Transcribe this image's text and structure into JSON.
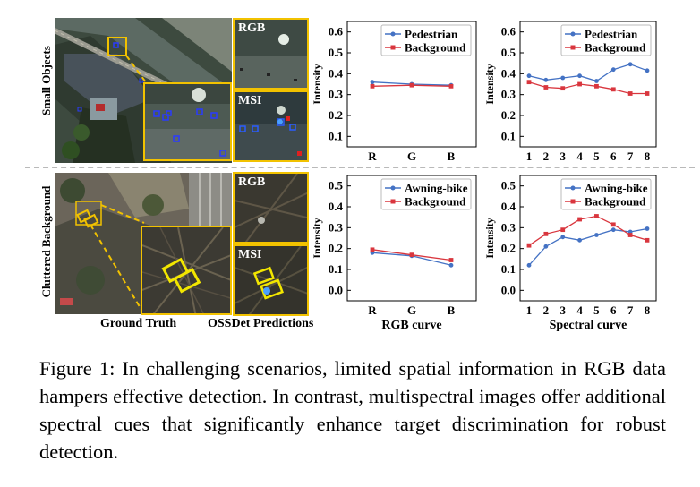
{
  "figure": {
    "row_labels": [
      "Small Objects",
      "Cluttered Background"
    ],
    "column_captions": {
      "ground_truth": "Ground Truth",
      "predictions": "OSSDet Predictions",
      "rgb_curve": "RGB curve",
      "spectral_curve": "Spectral curve"
    },
    "inset_labels": {
      "rgb": "RGB",
      "msi": "MSI"
    }
  },
  "colors": {
    "series_a": "#4472c4",
    "series_b": "#d9363e",
    "highlight": "#f2c200"
  },
  "chart_data": [
    {
      "type": "line",
      "title": "",
      "xlabel": "",
      "ylabel": "Intensity",
      "categories": [
        "R",
        "G",
        "B"
      ],
      "ylim": [
        0.05,
        0.65
      ],
      "yticks": [
        "0.1",
        "0.2",
        "0.3",
        "0.4",
        "0.5",
        "0.6"
      ],
      "legend": "top-right",
      "series": [
        {
          "name": "Pedestrian",
          "values": [
            0.36,
            0.35,
            0.345
          ]
        },
        {
          "name": "Background",
          "values": [
            0.34,
            0.345,
            0.34
          ]
        }
      ]
    },
    {
      "type": "line",
      "title": "",
      "xlabel": "",
      "ylabel": "Intensity",
      "categories": [
        "1",
        "2",
        "3",
        "4",
        "5",
        "6",
        "7",
        "8"
      ],
      "ylim": [
        0.05,
        0.65
      ],
      "yticks": [
        "0.1",
        "0.2",
        "0.3",
        "0.4",
        "0.5",
        "0.6"
      ],
      "legend": "top-right",
      "series": [
        {
          "name": "Pedestrian",
          "values": [
            0.39,
            0.37,
            0.38,
            0.39,
            0.365,
            0.42,
            0.445,
            0.415
          ]
        },
        {
          "name": "Background",
          "values": [
            0.36,
            0.335,
            0.33,
            0.35,
            0.34,
            0.325,
            0.305,
            0.305
          ]
        }
      ]
    },
    {
      "type": "line",
      "title": "",
      "xlabel": "RGB curve",
      "ylabel": "Intensity",
      "categories": [
        "R",
        "G",
        "B"
      ],
      "ylim": [
        -0.05,
        0.55
      ],
      "yticks": [
        "0.0",
        "0.1",
        "0.2",
        "0.3",
        "0.4",
        "0.5"
      ],
      "legend": "top-right",
      "series": [
        {
          "name": "Awning-bike",
          "values": [
            0.18,
            0.165,
            0.12
          ]
        },
        {
          "name": "Background",
          "values": [
            0.195,
            0.17,
            0.145
          ]
        }
      ]
    },
    {
      "type": "line",
      "title": "",
      "xlabel": "Spectral curve",
      "ylabel": "Intensity",
      "categories": [
        "1",
        "2",
        "3",
        "4",
        "5",
        "6",
        "7",
        "8"
      ],
      "ylim": [
        -0.05,
        0.55
      ],
      "yticks": [
        "0.0",
        "0.1",
        "0.2",
        "0.3",
        "0.4",
        "0.5"
      ],
      "legend": "top-right",
      "series": [
        {
          "name": "Awning-bike",
          "values": [
            0.12,
            0.21,
            0.255,
            0.24,
            0.265,
            0.29,
            0.28,
            0.295
          ]
        },
        {
          "name": "Background",
          "values": [
            0.215,
            0.27,
            0.29,
            0.34,
            0.355,
            0.315,
            0.265,
            0.24
          ]
        }
      ]
    }
  ],
  "caption": {
    "lead": "Figure 1:",
    "text": "In challenging scenarios, limited spatial information in RGB data hampers effective detection. In contrast, multispectral images offer additional spectral cues that significantly enhance target discrimination for robust detection."
  }
}
